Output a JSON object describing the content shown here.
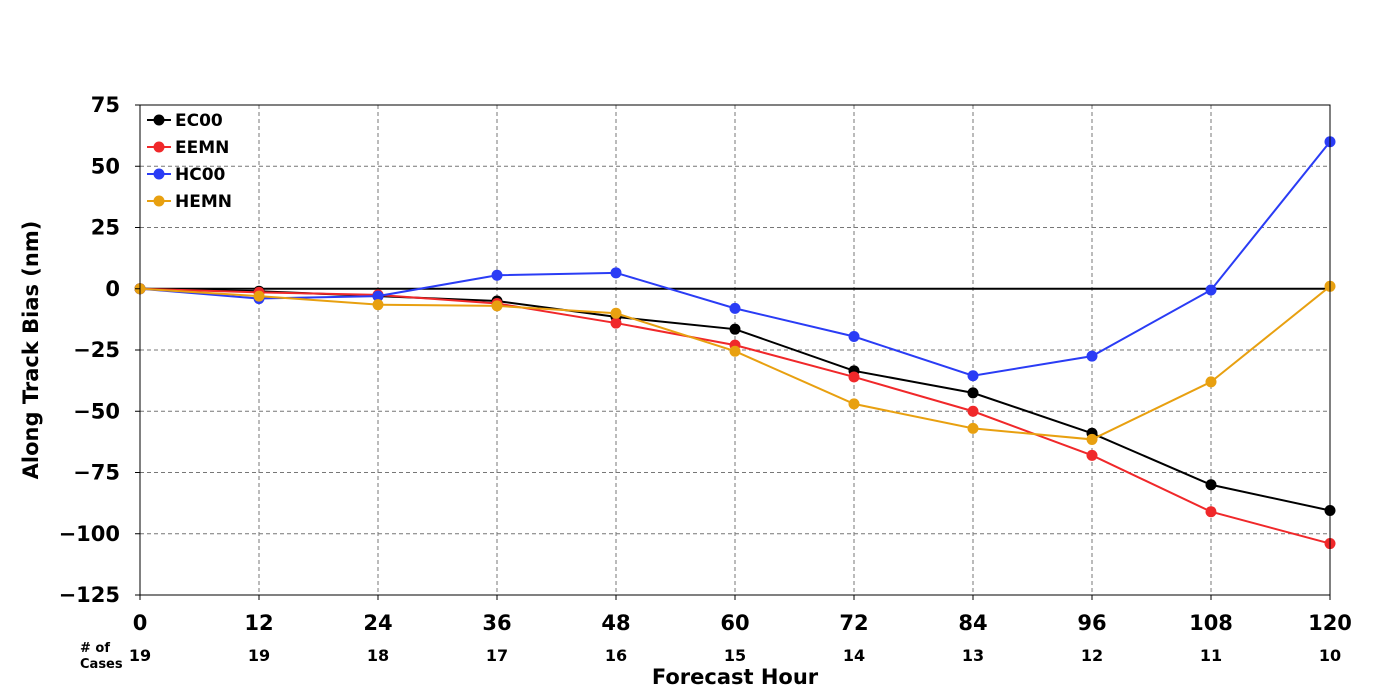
{
  "chart_data": {
    "type": "line",
    "xlabel": "Forecast Hour",
    "ylabel": "Along Track Bias (nm)",
    "x": [
      0,
      12,
      24,
      36,
      48,
      60,
      72,
      84,
      96,
      108,
      120
    ],
    "xlim": [
      0,
      120
    ],
    "ylim": [
      -125,
      75
    ],
    "yticks": [
      75,
      50,
      25,
      0,
      -25,
      -50,
      -75,
      -100,
      -125
    ],
    "ytick_labels": [
      "75",
      "50",
      "25",
      "0",
      "−25",
      "−50",
      "−75",
      "−100",
      "−125"
    ],
    "grid": true,
    "legend_position": "top-left",
    "cases_label": [
      "# of",
      "Cases"
    ],
    "cases": [
      "19",
      "19",
      "18",
      "17",
      "16",
      "15",
      "14",
      "13",
      "12",
      "11",
      "10"
    ],
    "series": [
      {
        "name": "EC00",
        "color": "#000000",
        "values": [
          0,
          -1,
          -3,
          -5,
          -11.5,
          -16.5,
          -33.5,
          -42.5,
          -59,
          -80,
          -90.5
        ]
      },
      {
        "name": "EEMN",
        "color": "#f0282a",
        "values": [
          0,
          -1.5,
          -2.5,
          -6,
          -14,
          -23,
          -36,
          -50,
          -68,
          -91,
          -104
        ]
      },
      {
        "name": "HC00",
        "color": "#2a3cf5",
        "values": [
          0,
          -4,
          -3,
          5.5,
          6.5,
          -8,
          -19.5,
          -35.5,
          -27.5,
          -0.5,
          60
        ]
      },
      {
        "name": "HEMN",
        "color": "#e8a010",
        "values": [
          0,
          -3,
          -6.5,
          -7,
          -10,
          -25.5,
          -47,
          -57,
          -61.5,
          -38,
          1
        ]
      }
    ]
  }
}
